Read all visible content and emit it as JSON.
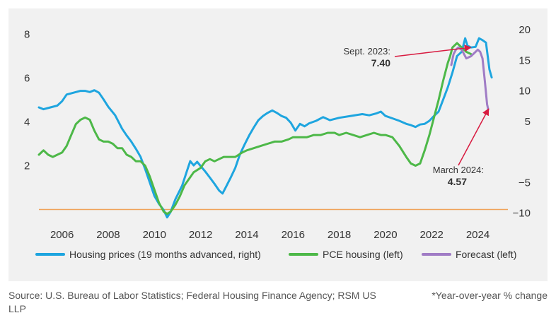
{
  "chart_data": {
    "type": "line",
    "left_axis": {
      "ylim": [
        -0.5,
        8.6
      ],
      "ticks": [
        2,
        4,
        6,
        8
      ]
    },
    "right_axis": {
      "ylim": [
        -11.2,
        21.4
      ],
      "ticks": [
        -10,
        -5,
        5,
        10,
        15,
        20
      ]
    },
    "x_axis": {
      "xlim": [
        2005.0,
        2025.3
      ],
      "ticks": [
        2006,
        2008,
        2010,
        2012,
        2014,
        2016,
        2018,
        2020,
        2022,
        2024
      ]
    },
    "reference_line": {
      "axis": "left",
      "value": 0,
      "color": "#f0a35a"
    },
    "grid": false,
    "legend_position": "bottom",
    "series": [
      {
        "name": "Housing prices (19 months advanced, right)",
        "axis": "right",
        "color": "#1ea5df",
        "points": [
          [
            2005.0,
            7.3
          ],
          [
            2005.2,
            7.0
          ],
          [
            2005.5,
            7.3
          ],
          [
            2005.8,
            7.6
          ],
          [
            2006.0,
            8.3
          ],
          [
            2006.2,
            9.4
          ],
          [
            2006.5,
            9.7
          ],
          [
            2006.8,
            10.0
          ],
          [
            2007.0,
            10.0
          ],
          [
            2007.2,
            9.8
          ],
          [
            2007.4,
            10.1
          ],
          [
            2007.6,
            9.7
          ],
          [
            2007.8,
            8.6
          ],
          [
            2008.0,
            7.4
          ],
          [
            2008.3,
            6.0
          ],
          [
            2008.6,
            3.8
          ],
          [
            2008.8,
            2.7
          ],
          [
            2009.0,
            1.7
          ],
          [
            2009.2,
            0.5
          ],
          [
            2009.4,
            -0.8
          ],
          [
            2009.6,
            -2.8
          ],
          [
            2009.8,
            -5.0
          ],
          [
            2010.0,
            -7.2
          ],
          [
            2010.2,
            -8.5
          ],
          [
            2010.4,
            -9.5
          ],
          [
            2010.55,
            -10.7
          ],
          [
            2010.7,
            -9.8
          ],
          [
            2010.9,
            -7.8
          ],
          [
            2011.2,
            -5.5
          ],
          [
            2011.4,
            -3.2
          ],
          [
            2011.55,
            -1.5
          ],
          [
            2011.7,
            -2.2
          ],
          [
            2011.85,
            -1.6
          ],
          [
            2012.0,
            -2.3
          ],
          [
            2012.2,
            -3.2
          ],
          [
            2012.4,
            -4.2
          ],
          [
            2012.6,
            -5.2
          ],
          [
            2012.8,
            -6.3
          ],
          [
            2012.95,
            -6.8
          ],
          [
            2013.1,
            -5.7
          ],
          [
            2013.3,
            -4.2
          ],
          [
            2013.5,
            -2.6
          ],
          [
            2013.7,
            -0.4
          ],
          [
            2013.9,
            1.2
          ],
          [
            2014.1,
            2.7
          ],
          [
            2014.3,
            4.0
          ],
          [
            2014.5,
            5.2
          ],
          [
            2014.7,
            5.9
          ],
          [
            2014.9,
            6.4
          ],
          [
            2015.1,
            6.8
          ],
          [
            2015.3,
            6.4
          ],
          [
            2015.5,
            5.9
          ],
          [
            2015.7,
            5.6
          ],
          [
            2015.9,
            4.8
          ],
          [
            2016.1,
            3.5
          ],
          [
            2016.3,
            4.6
          ],
          [
            2016.5,
            4.2
          ],
          [
            2016.7,
            4.7
          ],
          [
            2017.0,
            5.1
          ],
          [
            2017.3,
            5.7
          ],
          [
            2017.6,
            5.2
          ],
          [
            2018.0,
            5.6
          ],
          [
            2018.5,
            5.9
          ],
          [
            2019.0,
            6.2
          ],
          [
            2019.3,
            6.0
          ],
          [
            2019.6,
            6.3
          ],
          [
            2019.8,
            6.6
          ],
          [
            2020.0,
            5.9
          ],
          [
            2020.3,
            5.5
          ],
          [
            2020.6,
            5.1
          ],
          [
            2020.9,
            4.6
          ],
          [
            2021.1,
            4.4
          ],
          [
            2021.3,
            4.1
          ],
          [
            2021.5,
            4.5
          ],
          [
            2021.7,
            4.6
          ],
          [
            2021.9,
            5.1
          ],
          [
            2022.1,
            5.9
          ],
          [
            2022.3,
            6.6
          ],
          [
            2022.5,
            8.6
          ],
          [
            2022.7,
            10.6
          ],
          [
            2022.9,
            13.0
          ],
          [
            2023.1,
            15.7
          ],
          [
            2023.3,
            16.4
          ],
          [
            2023.45,
            18.6
          ],
          [
            2023.55,
            17.4
          ],
          [
            2023.7,
            17.1
          ],
          [
            2023.9,
            17.2
          ],
          [
            2024.05,
            18.6
          ],
          [
            2024.2,
            18.3
          ],
          [
            2024.35,
            17.9
          ],
          [
            2024.5,
            13.5
          ],
          [
            2024.6,
            12.2
          ]
        ]
      },
      {
        "name": "PCE housing (left)",
        "axis": "left",
        "color": "#4db848",
        "points": [
          [
            2005.0,
            2.5
          ],
          [
            2005.2,
            2.7
          ],
          [
            2005.4,
            2.5
          ],
          [
            2005.6,
            2.4
          ],
          [
            2005.8,
            2.5
          ],
          [
            2006.0,
            2.6
          ],
          [
            2006.2,
            2.9
          ],
          [
            2006.4,
            3.4
          ],
          [
            2006.6,
            3.9
          ],
          [
            2006.8,
            4.1
          ],
          [
            2007.0,
            4.2
          ],
          [
            2007.2,
            4.1
          ],
          [
            2007.4,
            3.6
          ],
          [
            2007.6,
            3.2
          ],
          [
            2007.8,
            3.1
          ],
          [
            2008.0,
            3.1
          ],
          [
            2008.2,
            3.0
          ],
          [
            2008.4,
            2.8
          ],
          [
            2008.6,
            2.8
          ],
          [
            2008.8,
            2.5
          ],
          [
            2009.0,
            2.4
          ],
          [
            2009.2,
            2.2
          ],
          [
            2009.4,
            2.2
          ],
          [
            2009.6,
            2.0
          ],
          [
            2009.8,
            1.5
          ],
          [
            2010.0,
            0.9
          ],
          [
            2010.2,
            0.3
          ],
          [
            2010.4,
            -0.1
          ],
          [
            2010.55,
            -0.2
          ],
          [
            2010.7,
            -0.1
          ],
          [
            2010.9,
            0.2
          ],
          [
            2011.1,
            0.6
          ],
          [
            2011.3,
            1.1
          ],
          [
            2011.5,
            1.4
          ],
          [
            2011.7,
            1.7
          ],
          [
            2012.0,
            1.9
          ],
          [
            2012.2,
            2.2
          ],
          [
            2012.4,
            2.3
          ],
          [
            2012.6,
            2.2
          ],
          [
            2012.8,
            2.3
          ],
          [
            2013.0,
            2.4
          ],
          [
            2013.2,
            2.4
          ],
          [
            2013.5,
            2.4
          ],
          [
            2013.8,
            2.6
          ],
          [
            2014.0,
            2.7
          ],
          [
            2014.3,
            2.8
          ],
          [
            2014.6,
            2.9
          ],
          [
            2014.9,
            3.0
          ],
          [
            2015.2,
            3.1
          ],
          [
            2015.5,
            3.1
          ],
          [
            2015.8,
            3.2
          ],
          [
            2016.0,
            3.3
          ],
          [
            2016.3,
            3.3
          ],
          [
            2016.6,
            3.3
          ],
          [
            2016.9,
            3.4
          ],
          [
            2017.2,
            3.4
          ],
          [
            2017.5,
            3.5
          ],
          [
            2017.8,
            3.5
          ],
          [
            2018.0,
            3.4
          ],
          [
            2018.3,
            3.5
          ],
          [
            2018.6,
            3.4
          ],
          [
            2018.9,
            3.3
          ],
          [
            2019.2,
            3.4
          ],
          [
            2019.5,
            3.5
          ],
          [
            2019.8,
            3.4
          ],
          [
            2020.0,
            3.4
          ],
          [
            2020.3,
            3.3
          ],
          [
            2020.6,
            2.9
          ],
          [
            2020.9,
            2.4
          ],
          [
            2021.1,
            2.1
          ],
          [
            2021.3,
            2.0
          ],
          [
            2021.5,
            2.1
          ],
          [
            2021.7,
            2.7
          ],
          [
            2021.9,
            3.4
          ],
          [
            2022.1,
            4.2
          ],
          [
            2022.3,
            5.0
          ],
          [
            2022.5,
            5.9
          ],
          [
            2022.7,
            6.7
          ],
          [
            2022.8,
            7.0
          ],
          [
            2022.9,
            7.4
          ],
          [
            2023.1,
            7.6
          ],
          [
            2023.3,
            7.4
          ],
          [
            2023.5,
            7.2
          ],
          [
            2023.7,
            7.1
          ]
        ]
      },
      {
        "name": "Forecast (left)",
        "axis": "left",
        "color": "#a07cc5",
        "points": [
          [
            2022.85,
            6.6
          ],
          [
            2022.95,
            7.1
          ],
          [
            2023.05,
            7.3
          ],
          [
            2023.15,
            7.4
          ],
          [
            2023.3,
            7.3
          ],
          [
            2023.5,
            6.9
          ],
          [
            2023.7,
            7.0
          ],
          [
            2023.9,
            7.2
          ],
          [
            2024.0,
            7.3
          ],
          [
            2024.1,
            7.2
          ],
          [
            2024.2,
            6.9
          ],
          [
            2024.3,
            5.9
          ],
          [
            2024.4,
            4.8
          ],
          [
            2024.45,
            4.57
          ]
        ]
      }
    ],
    "annotations": [
      {
        "label": "Sept. 2023:",
        "value": "7.40",
        "x": 2023.67,
        "y": 7.4,
        "axis": "left",
        "color": "#d81b40"
      },
      {
        "label": "March 2024:",
        "value": "4.57",
        "x": 2024.45,
        "y": 4.57,
        "axis": "left",
        "color": "#d81b40"
      }
    ]
  },
  "footer": {
    "source": "Source: U.S. Bureau of Labor Statistics; Federal Housing Finance Agency; RSM US LLP",
    "note": "*Year-over-year % change"
  }
}
